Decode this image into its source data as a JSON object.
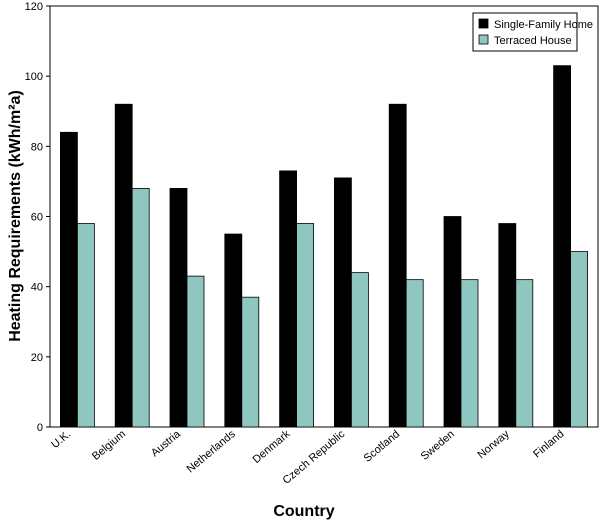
{
  "chart_data": {
    "type": "bar",
    "title": "",
    "xlabel": "Country",
    "ylabel": "Heating Requirements (kWh/m²a)",
    "ylim": [
      0,
      120
    ],
    "yticks": [
      0,
      20,
      40,
      60,
      80,
      100,
      120
    ],
    "categories": [
      "U.K.",
      "Belgium",
      "Austria",
      "Netherlands",
      "Denmark",
      "Czech Republic",
      "Scotland",
      "Sweden",
      "Norway",
      "Finland"
    ],
    "series": [
      {
        "name": "Single-Family Home",
        "color": "#000000",
        "values": [
          84,
          92,
          68,
          55,
          73,
          71,
          92,
          60,
          58,
          103
        ]
      },
      {
        "name": "Terraced House",
        "color": "#8fc6c0",
        "values": [
          58,
          68,
          43,
          37,
          58,
          44,
          42,
          42,
          42,
          50
        ]
      }
    ],
    "legend": "top-right",
    "grid": false
  }
}
